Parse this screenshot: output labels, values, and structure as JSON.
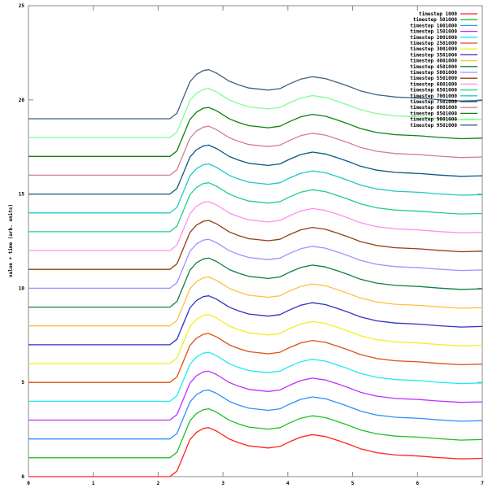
{
  "chart_data": {
    "type": "line",
    "title": "",
    "xlabel": "",
    "ylabel": "value + time (arb. units)",
    "xlim": [
      0,
      7
    ],
    "ylim": [
      0,
      25
    ],
    "xticks": [
      0,
      1,
      2,
      3,
      4,
      5,
      6,
      7
    ],
    "yticks": [
      0,
      5,
      10,
      15,
      20,
      25
    ],
    "grid": false,
    "legend_position": "top-right",
    "x": [
      0,
      2.18,
      2.29,
      2.39,
      2.49,
      2.59,
      2.7,
      2.78,
      2.9,
      3.1,
      3.24,
      3.4,
      3.7,
      3.88,
      4.02,
      4.2,
      4.38,
      4.58,
      4.78,
      4.93,
      5.12,
      5.37,
      5.66,
      6.04,
      6.33,
      6.67,
      7
    ],
    "series": [
      {
        "name": "timestep 1000",
        "color": "#ff2020",
        "values": [
          0,
          0,
          0.29,
          1.12,
          1.96,
          2.35,
          2.56,
          2.6,
          2.42,
          1.99,
          1.8,
          1.63,
          1.52,
          1.6,
          1.84,
          2.1,
          2.23,
          2.13,
          1.91,
          1.73,
          1.48,
          1.27,
          1.15,
          1.09,
          1.01,
          0.94,
          0.97
        ]
      },
      {
        "name": "timestep 501000",
        "color": "#20c020",
        "values": [
          1,
          1,
          1.29,
          2.12,
          2.96,
          3.35,
          3.56,
          3.6,
          3.42,
          2.99,
          2.8,
          2.63,
          2.52,
          2.6,
          2.84,
          3.1,
          3.23,
          3.13,
          2.91,
          2.73,
          2.48,
          2.27,
          2.15,
          2.09,
          2.01,
          1.94,
          1.97
        ]
      },
      {
        "name": "timestep 1001000",
        "color": "#3090ff",
        "values": [
          2,
          2,
          2.29,
          3.12,
          3.96,
          4.35,
          4.56,
          4.6,
          4.42,
          3.99,
          3.8,
          3.63,
          3.52,
          3.6,
          3.84,
          4.1,
          4.23,
          4.13,
          3.91,
          3.73,
          3.48,
          3.27,
          3.15,
          3.09,
          3.01,
          2.94,
          2.97
        ]
      },
      {
        "name": "timestep 1501000",
        "color": "#c030ff",
        "values": [
          3,
          3,
          3.29,
          4.12,
          4.96,
          5.35,
          5.56,
          5.6,
          5.42,
          4.99,
          4.8,
          4.63,
          4.52,
          4.6,
          4.84,
          5.1,
          5.23,
          5.13,
          4.91,
          4.73,
          4.48,
          4.27,
          4.15,
          4.09,
          4.01,
          3.94,
          3.97
        ]
      },
      {
        "name": "timestep 2001000",
        "color": "#20e8f0",
        "values": [
          4,
          4,
          4.29,
          5.12,
          5.96,
          6.35,
          6.56,
          6.6,
          6.42,
          5.99,
          5.8,
          5.63,
          5.52,
          5.6,
          5.84,
          6.1,
          6.23,
          6.13,
          5.91,
          5.73,
          5.48,
          5.27,
          5.15,
          5.09,
          5.01,
          4.94,
          4.97
        ]
      },
      {
        "name": "timestep 2501000",
        "color": "#e05010",
        "values": [
          5,
          5,
          5.29,
          6.12,
          6.96,
          7.35,
          7.56,
          7.6,
          7.42,
          6.99,
          6.8,
          6.63,
          6.52,
          6.6,
          6.84,
          7.1,
          7.23,
          7.13,
          6.91,
          6.73,
          6.48,
          6.27,
          6.15,
          6.09,
          6.01,
          5.94,
          5.97
        ]
      },
      {
        "name": "timestep 3001000",
        "color": "#f0f020",
        "values": [
          6,
          6,
          6.29,
          7.12,
          7.96,
          8.35,
          8.56,
          8.6,
          8.42,
          7.99,
          7.8,
          7.63,
          7.52,
          7.6,
          7.84,
          8.1,
          8.23,
          8.13,
          7.91,
          7.73,
          7.48,
          7.27,
          7.15,
          7.09,
          7.01,
          6.94,
          6.97
        ]
      },
      {
        "name": "timestep 3501000",
        "color": "#3030c0",
        "values": [
          7,
          7,
          7.29,
          8.12,
          8.96,
          9.35,
          9.56,
          9.6,
          9.42,
          8.99,
          8.8,
          8.63,
          8.52,
          8.6,
          8.84,
          9.1,
          9.23,
          9.13,
          8.91,
          8.73,
          8.48,
          8.27,
          8.15,
          8.09,
          8.01,
          7.94,
          7.97
        ]
      },
      {
        "name": "timestep 4001000",
        "color": "#ffc040",
        "values": [
          8,
          8,
          8.29,
          9.12,
          9.96,
          10.35,
          10.56,
          10.6,
          10.42,
          9.99,
          9.8,
          9.63,
          9.52,
          9.6,
          9.84,
          10.1,
          10.23,
          10.13,
          9.91,
          9.73,
          9.48,
          9.27,
          9.15,
          9.09,
          9.01,
          8.94,
          8.97
        ]
      },
      {
        "name": "timestep 4501000",
        "color": "#108040",
        "values": [
          9,
          9,
          9.29,
          10.12,
          10.96,
          11.35,
          11.56,
          11.6,
          11.42,
          10.99,
          10.8,
          10.63,
          10.52,
          10.6,
          10.84,
          11.1,
          11.23,
          11.13,
          10.91,
          10.73,
          10.48,
          10.27,
          10.15,
          10.09,
          10.01,
          9.94,
          9.97
        ]
      },
      {
        "name": "timestep 5001000",
        "color": "#a090ff",
        "values": [
          10,
          10,
          10.29,
          11.12,
          11.96,
          12.35,
          12.56,
          12.6,
          12.42,
          11.99,
          11.8,
          11.63,
          11.52,
          11.6,
          11.84,
          12.1,
          12.23,
          12.13,
          11.91,
          11.73,
          11.48,
          11.27,
          11.15,
          11.09,
          11.01,
          10.94,
          10.97
        ]
      },
      {
        "name": "timestep 5501000",
        "color": "#904010",
        "values": [
          11,
          11,
          11.29,
          12.12,
          12.96,
          13.35,
          13.56,
          13.6,
          13.42,
          12.99,
          12.8,
          12.63,
          12.52,
          12.6,
          12.84,
          13.1,
          13.23,
          13.13,
          12.91,
          12.73,
          12.48,
          12.27,
          12.15,
          12.09,
          12.01,
          11.94,
          11.97
        ]
      },
      {
        "name": "timestep 6001000",
        "color": "#ff90f0",
        "values": [
          12,
          12,
          12.29,
          13.12,
          13.96,
          14.35,
          14.56,
          14.6,
          14.42,
          13.99,
          13.8,
          13.63,
          13.52,
          13.6,
          13.84,
          14.1,
          14.23,
          14.13,
          13.91,
          13.73,
          13.48,
          13.27,
          13.15,
          13.09,
          13.01,
          12.94,
          12.97
        ]
      },
      {
        "name": "timestep 6501000",
        "color": "#20d080",
        "values": [
          13,
          13,
          13.29,
          14.12,
          14.96,
          15.35,
          15.56,
          15.6,
          15.42,
          14.99,
          14.8,
          14.63,
          14.52,
          14.6,
          14.84,
          15.1,
          15.23,
          15.13,
          14.91,
          14.73,
          14.48,
          14.27,
          14.15,
          14.09,
          14.01,
          13.94,
          13.97
        ]
      },
      {
        "name": "timestep 7001000",
        "color": "#20c8c8",
        "values": [
          14,
          14,
          14.29,
          15.12,
          15.96,
          16.35,
          16.56,
          16.6,
          16.42,
          15.99,
          15.8,
          15.63,
          15.52,
          15.6,
          15.84,
          16.1,
          16.23,
          16.13,
          15.91,
          15.73,
          15.48,
          15.27,
          15.15,
          15.09,
          15.01,
          14.94,
          14.97
        ]
      },
      {
        "name": "timestep 7501000",
        "color": "#105880",
        "values": [
          15,
          15,
          15.29,
          16.12,
          16.96,
          17.35,
          17.56,
          17.6,
          17.42,
          16.99,
          16.8,
          16.63,
          16.52,
          16.6,
          16.84,
          17.1,
          17.23,
          17.13,
          16.91,
          16.73,
          16.48,
          16.27,
          16.15,
          16.09,
          16.01,
          15.94,
          15.97
        ]
      },
      {
        "name": "timestep 8001000",
        "color": "#d08090",
        "values": [
          16,
          16,
          16.29,
          17.12,
          17.96,
          18.35,
          18.56,
          18.6,
          18.42,
          17.99,
          17.8,
          17.63,
          17.52,
          17.6,
          17.84,
          18.1,
          18.23,
          18.13,
          17.91,
          17.73,
          17.48,
          17.27,
          17.15,
          17.09,
          17.01,
          16.94,
          16.97
        ]
      },
      {
        "name": "timestep 8501000",
        "color": "#108010",
        "values": [
          17,
          17,
          17.29,
          18.12,
          18.96,
          19.35,
          19.56,
          19.6,
          19.42,
          18.99,
          18.8,
          18.63,
          18.52,
          18.6,
          18.84,
          19.1,
          19.23,
          19.13,
          18.91,
          18.73,
          18.48,
          18.27,
          18.15,
          18.09,
          18.01,
          17.94,
          17.97
        ]
      },
      {
        "name": "timestep 9001000",
        "color": "#80ff90",
        "values": [
          18,
          18,
          18.29,
          19.12,
          19.96,
          20.35,
          20.56,
          20.6,
          20.42,
          19.99,
          19.8,
          19.63,
          19.52,
          19.6,
          19.84,
          20.1,
          20.23,
          20.13,
          19.91,
          19.73,
          19.48,
          19.27,
          19.15,
          19.09,
          19.01,
          18.94,
          18.97
        ]
      },
      {
        "name": "timestep 9501000",
        "color": "#406080",
        "values": [
          19,
          19,
          19.29,
          20.12,
          20.96,
          21.35,
          21.56,
          21.6,
          21.42,
          20.99,
          20.8,
          20.63,
          20.52,
          20.6,
          20.84,
          21.1,
          21.23,
          21.13,
          20.91,
          20.73,
          20.48,
          20.27,
          20.15,
          20.09,
          20.01,
          19.94,
          19.97
        ]
      }
    ]
  }
}
